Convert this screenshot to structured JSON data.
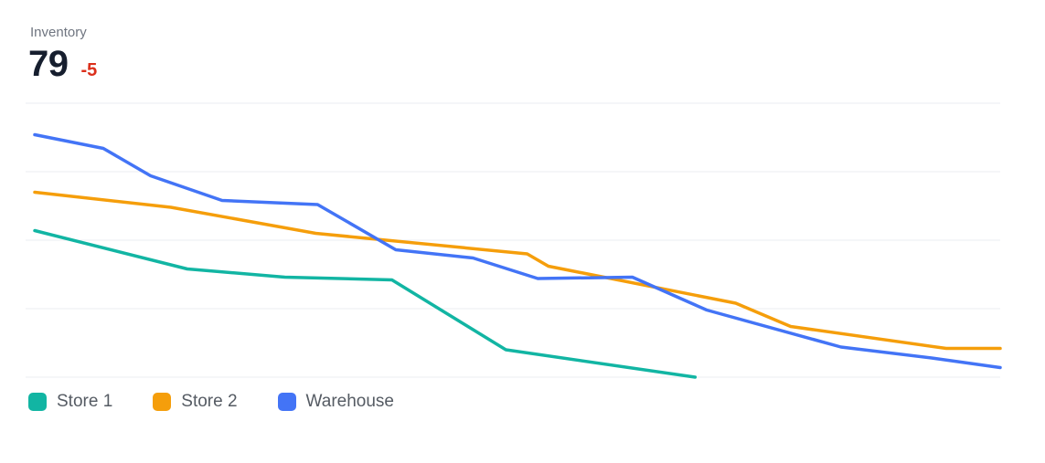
{
  "header": {
    "title": "Inventory",
    "value": "79",
    "delta": "-5"
  },
  "colors": {
    "background": "#ffffff",
    "title_text": "#6f7580",
    "value_text": "#161e2e",
    "delta_text": "#db2f1b",
    "gridline": "#ebedf0",
    "legend_text": "#555b63",
    "store1": "#12b5a3",
    "store2": "#f59e0b",
    "warehouse": "#4374f6"
  },
  "chart_data": {
    "type": "line",
    "title": "Inventory",
    "current_value": 79,
    "delta": -5,
    "xlabel": "",
    "ylabel": "",
    "x_axis_labels_visible": false,
    "y_axis_labels_visible": false,
    "ylim": [
      0,
      200
    ],
    "gridlines": [
      0,
      50,
      100,
      150,
      200
    ],
    "grid": "horizontal-only",
    "legend_position": "bottom-left",
    "series": [
      {
        "name": "Store 1",
        "color": "#12b5a3",
        "points": [
          [
            0.0,
            107
          ],
          [
            0.158,
            79
          ],
          [
            0.259,
            73
          ],
          [
            0.37,
            71
          ],
          [
            0.488,
            20
          ],
          [
            0.684,
            0
          ]
        ]
      },
      {
        "name": "Store 2",
        "color": "#f59e0b",
        "points": [
          [
            0.0,
            135
          ],
          [
            0.141,
            124
          ],
          [
            0.291,
            105
          ],
          [
            0.51,
            90
          ],
          [
            0.532,
            81
          ],
          [
            0.726,
            54
          ],
          [
            0.783,
            37
          ],
          [
            0.944,
            21
          ],
          [
            1.0,
            21
          ]
        ]
      },
      {
        "name": "Warehouse",
        "color": "#4374f6",
        "points": [
          [
            0.0,
            177
          ],
          [
            0.071,
            167
          ],
          [
            0.12,
            147
          ],
          [
            0.194,
            129
          ],
          [
            0.293,
            126
          ],
          [
            0.374,
            93
          ],
          [
            0.454,
            87
          ],
          [
            0.521,
            72
          ],
          [
            0.619,
            73
          ],
          [
            0.696,
            49
          ],
          [
            0.835,
            22
          ],
          [
            0.929,
            14
          ],
          [
            1.0,
            7
          ]
        ]
      }
    ]
  },
  "legend": {
    "items": [
      {
        "label": "Store 1",
        "color": "#12b5a3"
      },
      {
        "label": "Store 2",
        "color": "#f59e0b"
      },
      {
        "label": "Warehouse",
        "color": "#4374f6"
      }
    ]
  }
}
